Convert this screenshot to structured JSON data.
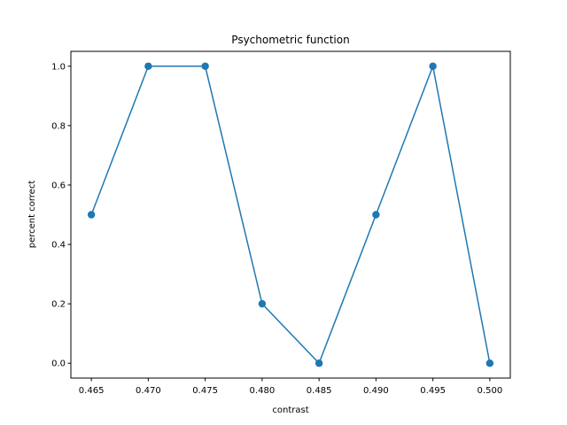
{
  "colors": {
    "series": "#1f77b4",
    "axes": "#000000",
    "background": "#ffffff"
  },
  "chart_data": {
    "type": "line",
    "title": "Psychometric function",
    "xlabel": "contrast",
    "ylabel": "percent correct",
    "xlim": [
      0.4632,
      0.5018
    ],
    "ylim": [
      -0.05,
      1.05
    ],
    "xticks": [
      0.465,
      0.47,
      0.475,
      0.48,
      0.485,
      0.49,
      0.495,
      0.5
    ],
    "xtick_labels": [
      "0.465",
      "0.470",
      "0.475",
      "0.480",
      "0.485",
      "0.490",
      "0.495",
      "0.500"
    ],
    "yticks": [
      0.0,
      0.2,
      0.4,
      0.6,
      0.8,
      1.0
    ],
    "ytick_labels": [
      "0.0",
      "0.2",
      "0.4",
      "0.6",
      "0.8",
      "1.0"
    ],
    "grid": false,
    "legend": "none",
    "series": [
      {
        "marker": "circle",
        "x": [
          0.465,
          0.47,
          0.475,
          0.48,
          0.485,
          0.49,
          0.495,
          0.5
        ],
        "y": [
          0.5,
          1.0,
          1.0,
          0.2,
          0.0,
          0.5,
          1.0,
          0.0
        ]
      }
    ]
  }
}
